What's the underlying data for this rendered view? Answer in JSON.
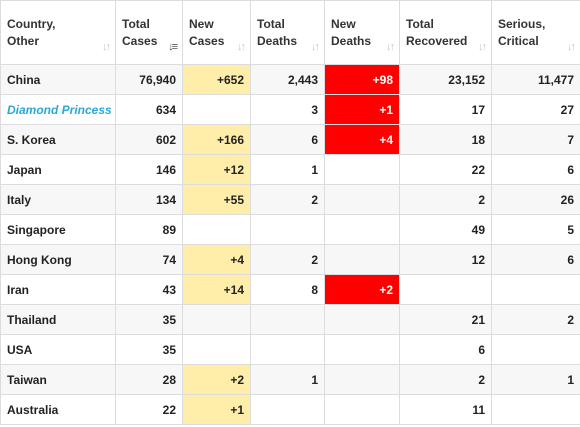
{
  "columns": [
    {
      "id": "country",
      "line1": "Country,",
      "line2": "Other",
      "sort_icon": "sort-icon"
    },
    {
      "id": "total_cases",
      "line1": "Total",
      "line2": "Cases",
      "sort_icon": "sort-desc-icon"
    },
    {
      "id": "new_cases",
      "line1": "New",
      "line2": "Cases",
      "sort_icon": "sort-icon"
    },
    {
      "id": "total_deaths",
      "line1": "Total",
      "line2": "Deaths",
      "sort_icon": "sort-icon"
    },
    {
      "id": "new_deaths",
      "line1": "New",
      "line2": "Deaths",
      "sort_icon": "sort-icon"
    },
    {
      "id": "total_recovered",
      "line1": "Total",
      "line2": "Recovered",
      "sort_icon": "sort-icon"
    },
    {
      "id": "serious_critical",
      "line1": "Serious,",
      "line2": "Critical",
      "sort_icon": "sort-icon"
    }
  ],
  "rows": [
    {
      "country": "China",
      "total_cases": "76,940",
      "new_cases": "+652",
      "total_deaths": "2,443",
      "new_deaths": "+98",
      "total_recovered": "23,152",
      "serious_critical": "11,477"
    },
    {
      "country": "Diamond Princess",
      "link": true,
      "total_cases": "634",
      "new_cases": "",
      "total_deaths": "3",
      "new_deaths": "+1",
      "total_recovered": "17",
      "serious_critical": "27"
    },
    {
      "country": "S. Korea",
      "total_cases": "602",
      "new_cases": "+166",
      "total_deaths": "6",
      "new_deaths": "+4",
      "total_recovered": "18",
      "serious_critical": "7"
    },
    {
      "country": "Japan",
      "total_cases": "146",
      "new_cases": "+12",
      "total_deaths": "1",
      "new_deaths": "",
      "total_recovered": "22",
      "serious_critical": "6"
    },
    {
      "country": "Italy",
      "total_cases": "134",
      "new_cases": "+55",
      "total_deaths": "2",
      "new_deaths": "",
      "total_recovered": "2",
      "serious_critical": "26"
    },
    {
      "country": "Singapore",
      "total_cases": "89",
      "new_cases": "",
      "total_deaths": "",
      "new_deaths": "",
      "total_recovered": "49",
      "serious_critical": "5"
    },
    {
      "country": "Hong Kong",
      "total_cases": "74",
      "new_cases": "+4",
      "total_deaths": "2",
      "new_deaths": "",
      "total_recovered": "12",
      "serious_critical": "6"
    },
    {
      "country": "Iran",
      "total_cases": "43",
      "new_cases": "+14",
      "total_deaths": "8",
      "new_deaths": "+2",
      "total_recovered": "",
      "serious_critical": ""
    },
    {
      "country": "Thailand",
      "total_cases": "35",
      "new_cases": "",
      "total_deaths": "",
      "new_deaths": "",
      "total_recovered": "21",
      "serious_critical": "2"
    },
    {
      "country": "USA",
      "total_cases": "35",
      "new_cases": "",
      "total_deaths": "",
      "new_deaths": "",
      "total_recovered": "6",
      "serious_critical": ""
    },
    {
      "country": "Taiwan",
      "total_cases": "28",
      "new_cases": "+2",
      "total_deaths": "1",
      "new_deaths": "",
      "total_recovered": "2",
      "serious_critical": "1"
    },
    {
      "country": "Australia",
      "total_cases": "22",
      "new_cases": "+1",
      "total_deaths": "",
      "new_deaths": "",
      "total_recovered": "11",
      "serious_critical": ""
    }
  ],
  "colors": {
    "new_cases_highlight": "#ffeeaa",
    "new_deaths_highlight": "#ff0000",
    "link_text": "#2aa8d8"
  }
}
